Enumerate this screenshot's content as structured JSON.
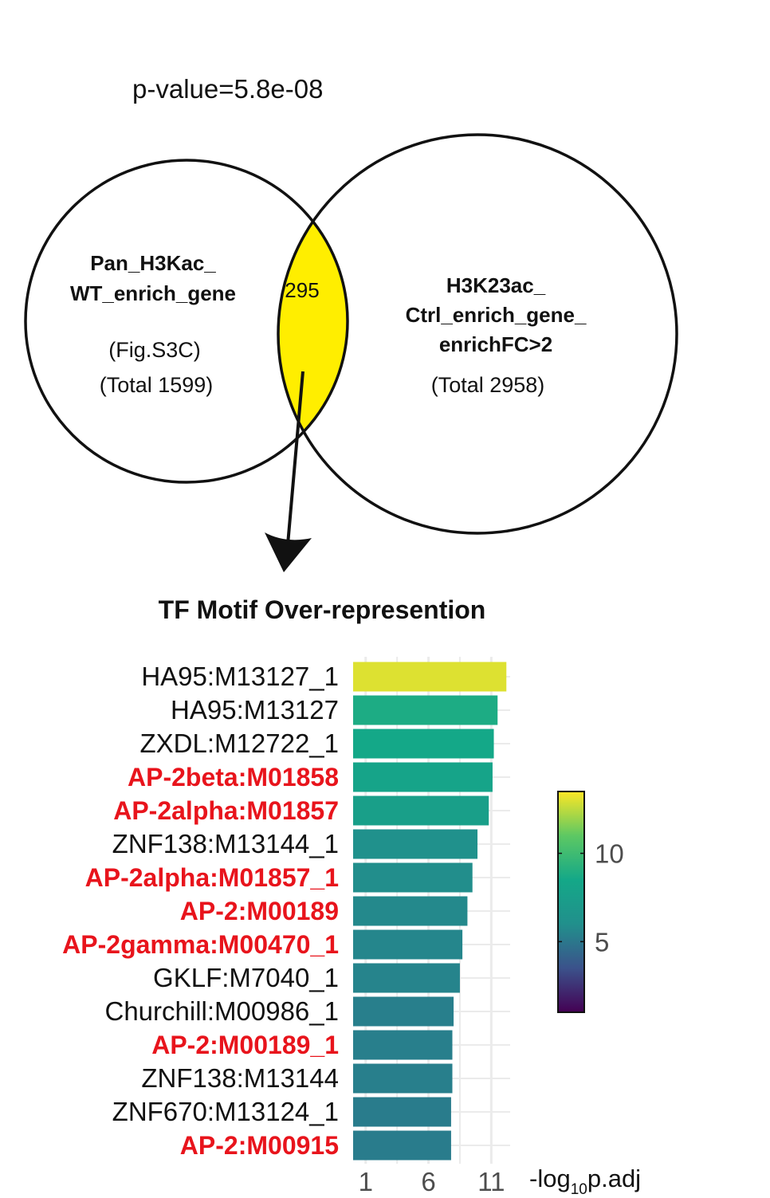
{
  "venn": {
    "pvalue": "p-value=5.8e-08",
    "left": {
      "title_lines": [
        "Pan_H3Kac_",
        "WT_enrich_gene"
      ],
      "ref": "(Fig.S3C)",
      "total": "(Total 1599)"
    },
    "right": {
      "title_lines": [
        "H3K23ac_",
        "Ctrl_enrich_gene_",
        "enrichFC>2"
      ],
      "total": "(Total 2958)"
    },
    "overlap": "295",
    "overlap_color": "#FFEE00"
  },
  "chart_data": {
    "type": "bar",
    "orientation": "horizontal",
    "title": "TF Motif Over-represention",
    "xlabel_main": "-log",
    "xlabel_sub": "10",
    "xlabel_tail": "p.adj",
    "x_range": [
      0,
      12.5
    ],
    "x_ticks": [
      1,
      6,
      11
    ],
    "highlight_color": "#E8141C",
    "categories": [
      "HA95:M13127_1",
      "HA95:M13127",
      "ZXDL:M12722_1",
      "AP-2beta:M01858",
      "AP-2alpha:M01857",
      "ZNF138:M13144_1",
      "AP-2alpha:M01857_1",
      "AP-2:M00189",
      "AP-2gamma:M00470_1",
      "GKLF:M7040_1",
      "Churchill:M00986_1",
      "AP-2:M00189_1",
      "ZNF138:M13144",
      "ZNF670:M13124_1",
      "AP-2:M00915"
    ],
    "highlighted": [
      false,
      false,
      false,
      true,
      true,
      false,
      true,
      true,
      true,
      false,
      false,
      true,
      false,
      false,
      true
    ],
    "values": [
      12.2,
      11.5,
      11.2,
      11.1,
      10.8,
      9.9,
      9.5,
      9.1,
      8.7,
      8.5,
      8.0,
      7.9,
      7.9,
      7.8,
      7.8
    ],
    "color_values": [
      13.0,
      8.8,
      8.5,
      8.1,
      7.6,
      6.1,
      5.9,
      5.7,
      5.6,
      5.5,
      5.3,
      5.3,
      5.3,
      5.2,
      5.2
    ],
    "colorbar": {
      "range": [
        1,
        13.5
      ],
      "ticks": [
        5,
        10
      ],
      "colors": [
        "#440154",
        "#3B528B",
        "#21908C",
        "#14A888",
        "#5DC863",
        "#FDE725"
      ]
    }
  }
}
